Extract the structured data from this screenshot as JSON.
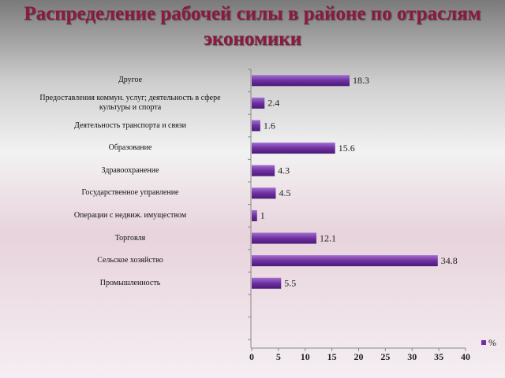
{
  "chart_data": {
    "type": "hbar",
    "title": "Распределение рабочей силы в районе по отраслям экономики",
    "categories": [
      "Другое",
      "Предоставления коммун. услуг; деятельность в сфере культуры и спорта",
      "Деятельность транспорта и связи",
      "Образование",
      "Здравоохранение",
      "Государственное управление",
      "Операции с недвиж. имуществом",
      "Торговля",
      "Сельское хозяйство",
      "Промышленность"
    ],
    "series": [
      {
        "name": "%",
        "color": "#7030a0",
        "values": [
          18.3,
          2.4,
          1.6,
          15.6,
          4.3,
          4.5,
          1,
          12.1,
          34.8,
          5.5
        ]
      }
    ],
    "xlim": [
      0,
      40
    ],
    "xticks": [
      0,
      5,
      10,
      15,
      20,
      25,
      30,
      35,
      40
    ],
    "legend": "bottom-right"
  }
}
